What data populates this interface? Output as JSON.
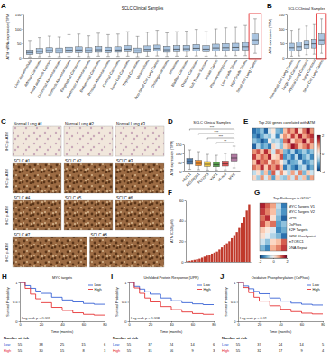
{
  "chart_data": [
    {
      "type": "box",
      "panel": "A",
      "title": "SCLC Clinical Samples",
      "y_label": "ATM mRNA expression (TPM)",
      "categories": [
        "Liver Hepatocellular",
        "Adrenal Carcinoma",
        "Head and Neck Cancers",
        "Colorectal Adenocarcinoma",
        "Stomach Adenocarcinoma",
        "Esophageal Carcinoma",
        "Pancreatic Adenocarcinoma",
        "Endometrial Carcinoma",
        "Prostate Adenocarcinoma",
        "Cervical Carcinoma",
        "Renal Cell Carcinoma",
        "Thyroid Carcinoma",
        "Mesothelioma",
        "Non-Small Cell Lung Cancer",
        "Cholangiocarcinoma",
        "Melanoma",
        "Bladder Carcinoma",
        "Ovarian Carcinoma",
        "Soft Tissue Sarcoma",
        "Breast Cancer",
        "Pheochromocytoma",
        "Low Grade Glioma",
        "High Grade Glioma",
        "Small Cell Lung Cancer"
      ],
      "min": [
        2,
        3,
        4,
        3,
        4,
        4,
        3,
        5,
        4,
        4,
        5,
        3,
        5,
        6,
        4,
        5,
        5,
        6,
        5,
        6,
        6,
        7,
        7,
        15
      ],
      "q1": [
        11,
        14,
        17,
        16,
        18,
        18,
        17,
        19,
        18,
        19,
        21,
        16,
        20,
        23,
        19,
        21,
        22,
        23,
        21,
        24,
        25,
        25,
        27,
        45
      ],
      "median": [
        18,
        22,
        25,
        24,
        26,
        27,
        25,
        28,
        26,
        27,
        30,
        24,
        29,
        32,
        28,
        30,
        31,
        33,
        30,
        34,
        35,
        36,
        38,
        62
      ],
      "q3": [
        27,
        32,
        35,
        34,
        37,
        38,
        35,
        39,
        37,
        38,
        42,
        34,
        41,
        44,
        40,
        42,
        43,
        46,
        42,
        47,
        49,
        50,
        53,
        82
      ],
      "max": [
        60,
        70,
        75,
        72,
        80,
        82,
        76,
        85,
        80,
        82,
        90,
        74,
        88,
        95,
        86,
        90,
        92,
        98,
        90,
        100,
        104,
        106,
        112,
        135
      ],
      "color": "#a9c4e0",
      "ylim": [
        0,
        150
      ],
      "yticks": [
        0,
        50,
        100,
        150
      ]
    },
    {
      "type": "box",
      "panel": "B",
      "title": "SCLC Clinical Samples",
      "y_label": "ATM expression (TPM)",
      "categories": [
        "Non-small Cell Lung Cancer",
        "Large Cell Carcinoma",
        "Atypical Lung Carcinoid",
        "Lung Carcinoid",
        "Small Cell Lung Cancer"
      ],
      "min": [
        5,
        6,
        10,
        12,
        15
      ],
      "q1": [
        24,
        26,
        32,
        34,
        45
      ],
      "median": [
        35,
        38,
        45,
        48,
        62
      ],
      "q3": [
        50,
        54,
        60,
        64,
        82
      ],
      "max": [
        95,
        100,
        110,
        115,
        135
      ],
      "color": "#a9c4e0",
      "ylim": [
        0,
        150
      ],
      "yticks": [
        0,
        50,
        100,
        150
      ]
    },
    {
      "type": "image_grid",
      "panel": "C",
      "side_label": "IHC: p-ATM",
      "rows": [
        [
          "Normal Lung #1",
          "Normal Lung #2",
          "Normal Lung #3"
        ],
        [
          "SCLC #1",
          "SCLC #2",
          "SCLC #3"
        ],
        [
          "SCLC #4",
          "SCLC #5",
          "SCLC #6"
        ],
        [
          "SCLC #7",
          "SCLC #8"
        ]
      ]
    },
    {
      "type": "box",
      "panel": "D",
      "title": "SCLC Clinical Samples",
      "y_label": "ATM expression (TPM)",
      "categories": [
        "ASCL1",
        "NEUROD1",
        "POU2F3",
        "YAP1",
        "TF-null",
        "MYC"
      ],
      "min": [
        12,
        10,
        8,
        8,
        9,
        20
      ],
      "q1": [
        40,
        32,
        28,
        26,
        30,
        58
      ],
      "median": [
        55,
        45,
        40,
        38,
        42,
        75
      ],
      "q3": [
        72,
        62,
        55,
        52,
        58,
        95
      ],
      "max": [
        120,
        110,
        95,
        90,
        100,
        140
      ],
      "colors": [
        "#4e79a7",
        "#f28e2b",
        "#edc948",
        "#59a14f",
        "#e15759",
        "#b07aa1"
      ],
      "ylim": [
        0,
        150
      ],
      "yticks": [
        0,
        50,
        100,
        150
      ],
      "annotations": [
        {
          "from": 0,
          "to": 5,
          "label": "***"
        },
        {
          "from": 1,
          "to": 5,
          "label": "***"
        },
        {
          "from": 2,
          "to": 5,
          "label": "***"
        },
        {
          "from": 3,
          "to": 5,
          "label": "**"
        }
      ]
    },
    {
      "type": "heatmap",
      "panel": "E",
      "title": "Top 200 genes correlated with ATM",
      "cells": [
        [
          -1.5,
          -1.2,
          -0.8,
          -1.6,
          -0.4,
          0.2,
          -0.9,
          -1.1,
          0.6,
          1.2,
          0.8,
          1.5,
          0.4,
          1.1,
          1.8,
          0.9
        ],
        [
          -1.2,
          -1.6,
          -1.0,
          -0.6,
          -0.8,
          -0.2,
          -1.3,
          0.3,
          0.9,
          0.5,
          1.4,
          0.7,
          1.6,
          0.8,
          1.2,
          1.5
        ],
        [
          -0.8,
          -1.1,
          -1.7,
          -1.3,
          0.1,
          -0.7,
          -0.5,
          -0.9,
          1.1,
          1.6,
          0.4,
          1.0,
          0.9,
          1.7,
          0.6,
          1.3
        ],
        [
          -1.6,
          -0.6,
          -1.2,
          -0.9,
          -1.4,
          0.4,
          -0.3,
          -0.8,
          0.5,
          0.9,
          1.7,
          1.3,
          0.6,
          1.0,
          1.4,
          0.7
        ],
        [
          0.9,
          1.3,
          0.6,
          1.5,
          0.8,
          -0.4,
          1.1,
          0.7,
          -0.9,
          -1.3,
          -0.6,
          -1.5,
          -1.1,
          -0.7,
          -1.2,
          -0.8
        ],
        [
          1.4,
          0.7,
          1.2,
          0.9,
          1.6,
          0.3,
          0.5,
          1.3,
          -1.2,
          -0.8,
          -1.4,
          -0.5,
          -1.6,
          -1.0,
          -0.6,
          -1.3
        ],
        [
          0.6,
          1.6,
          1.0,
          1.2,
          0.4,
          1.1,
          0.8,
          0.2,
          -0.6,
          -1.5,
          -1.0,
          -0.9,
          -0.4,
          -1.4,
          -1.1,
          -0.7
        ],
        [
          1.1,
          0.8,
          1.5,
          0.5,
          1.3,
          0.9,
          1.4,
          0.6,
          -1.4,
          -0.7,
          -1.2,
          -1.6,
          -0.8,
          -0.5,
          -1.5,
          -1.0
        ],
        [
          -0.5,
          0.3,
          -0.8,
          0.6,
          -1.0,
          1.2,
          -0.2,
          0.9,
          0.2,
          -0.6,
          0.8,
          -0.3,
          1.0,
          -0.9,
          0.5,
          -0.4
        ],
        [
          0.4,
          -0.7,
          0.9,
          -0.3,
          0.7,
          -1.1,
          0.5,
          -0.6,
          -0.8,
          0.7,
          -0.4,
          0.9,
          -0.5,
          0.6,
          -1.0,
          0.8
        ]
      ],
      "colorbar": {
        "lim": [
          -2,
          2
        ],
        "ticks": [
          -2,
          0,
          2
        ]
      }
    },
    {
      "type": "bar",
      "panel": "F",
      "y_label": "ATM IC50 (μM)",
      "values": [
        0.5,
        1,
        1.5,
        2,
        2.5,
        3,
        4,
        5,
        6,
        7,
        8,
        9,
        10,
        12,
        14,
        16,
        18,
        20,
        23,
        26,
        29,
        33,
        38,
        44,
        50,
        56
      ],
      "color": "#c0392b",
      "ylim": [
        0,
        60
      ],
      "yticks": [
        0,
        20,
        40,
        60
      ],
      "tick_labels": "y"
    },
    {
      "type": "heatmap",
      "panel": "G",
      "title": "Top Pathways in GDSC",
      "row_labels": [
        "MYC Targets V1",
        "MYC Targets V2",
        "UPR",
        "OxPhos",
        "E2F Targets",
        "G2M Checkpoint",
        "mTORC1",
        "DNA Repair"
      ],
      "cells": [
        [
          1.6,
          1.2,
          0.8,
          -0.5,
          -1.4
        ],
        [
          1.4,
          1.0,
          0.6,
          -0.7,
          -1.2
        ],
        [
          1.1,
          1.5,
          0.3,
          -0.9,
          -1.6
        ],
        [
          1.3,
          0.7,
          1.1,
          -1.1,
          -0.8
        ],
        [
          0.5,
          0.2,
          -0.3,
          -1.3,
          -1.0
        ],
        [
          0.3,
          -0.2,
          -0.6,
          -0.9,
          -1.5
        ],
        [
          -0.4,
          -0.8,
          0.4,
          0.6,
          1.2
        ],
        [
          -0.9,
          -1.3,
          0.7,
          1.0,
          1.4
        ]
      ],
      "colorbar": {
        "lim": [
          -2,
          2
        ],
        "ticks": [
          -2,
          0,
          2
        ]
      }
    },
    {
      "type": "line",
      "panel": "H",
      "title": "MYC targets",
      "x_label": "Time (months)",
      "y_label": "Survival Probability",
      "x": [
        0,
        5,
        10,
        15,
        20,
        30,
        40,
        50,
        60,
        70,
        80
      ],
      "xlim": [
        0,
        80
      ],
      "xticks": [
        0,
        20,
        40,
        60,
        80
      ],
      "ylim": [
        0,
        1
      ],
      "yticks": [
        0,
        0.5,
        1
      ],
      "line_style": "step",
      "legend": "upper right",
      "annotation": "Log-rank p = 0.003",
      "risk_title": "Number at risk",
      "risk_times": [
        0,
        20,
        40,
        60,
        80
      ],
      "series": [
        {
          "name": "Low",
          "color": "#1f4fd1",
          "values": [
            1,
            0.92,
            0.85,
            0.78,
            0.72,
            0.62,
            0.55,
            0.5,
            0.46,
            0.44,
            0.44
          ],
          "at_risk": [
            55,
            38,
            25,
            15,
            6
          ]
        },
        {
          "name": "High",
          "color": "#e31a1c",
          "values": [
            1,
            0.85,
            0.7,
            0.58,
            0.48,
            0.36,
            0.28,
            0.22,
            0.18,
            0.16,
            0.16
          ],
          "at_risk": [
            55,
            30,
            15,
            8,
            3
          ]
        }
      ]
    },
    {
      "type": "line",
      "panel": "I",
      "title": "Unfolded Protein Response (UPR)",
      "x_label": "Time (months)",
      "y_label": "Survival Probability",
      "x": [
        0,
        5,
        10,
        15,
        20,
        30,
        40,
        50,
        60,
        70,
        80
      ],
      "xlim": [
        0,
        80
      ],
      "xticks": [
        0,
        20,
        40,
        60,
        80
      ],
      "ylim": [
        0,
        1
      ],
      "yticks": [
        0,
        0.5,
        1
      ],
      "line_style": "step",
      "legend": "upper right",
      "annotation": "Log-rank p = 0.008",
      "risk_title": "Number at risk",
      "risk_times": [
        0,
        20,
        40,
        60,
        80
      ],
      "series": [
        {
          "name": "Low",
          "color": "#1f4fd1",
          "values": [
            1,
            0.9,
            0.83,
            0.76,
            0.7,
            0.6,
            0.53,
            0.48,
            0.45,
            0.43,
            0.43
          ],
          "at_risk": [
            55,
            37,
            24,
            14,
            6
          ]
        },
        {
          "name": "High",
          "color": "#e31a1c",
          "values": [
            1,
            0.86,
            0.72,
            0.6,
            0.5,
            0.38,
            0.3,
            0.24,
            0.2,
            0.18,
            0.18
          ],
          "at_risk": [
            55,
            31,
            16,
            9,
            3
          ]
        }
      ]
    },
    {
      "type": "line",
      "panel": "J",
      "title": "Oxidative Phosphorylation (OxPhos)",
      "x_label": "Time (months)",
      "y_label": "Survival Probability",
      "x": [
        0,
        5,
        10,
        15,
        20,
        30,
        40,
        50,
        60,
        70,
        80
      ],
      "xlim": [
        0,
        80
      ],
      "xticks": [
        0,
        20,
        40,
        60,
        80
      ],
      "ylim": [
        0,
        1
      ],
      "yticks": [
        0,
        0.5,
        1
      ],
      "line_style": "step",
      "legend": "upper right",
      "annotation": "Log-rank p = 0.01",
      "risk_title": "Number at risk",
      "risk_times": [
        0,
        20,
        40,
        60,
        80
      ],
      "series": [
        {
          "name": "Low",
          "color": "#1f4fd1",
          "values": [
            1,
            0.91,
            0.84,
            0.77,
            0.71,
            0.6,
            0.52,
            0.47,
            0.44,
            0.42,
            0.42
          ],
          "at_risk": [
            55,
            37,
            24,
            14,
            5
          ]
        },
        {
          "name": "High",
          "color": "#e31a1c",
          "values": [
            1,
            0.87,
            0.74,
            0.62,
            0.52,
            0.4,
            0.31,
            0.25,
            0.21,
            0.19,
            0.19
          ],
          "at_risk": [
            55,
            32,
            17,
            9,
            4
          ]
        }
      ]
    }
  ]
}
